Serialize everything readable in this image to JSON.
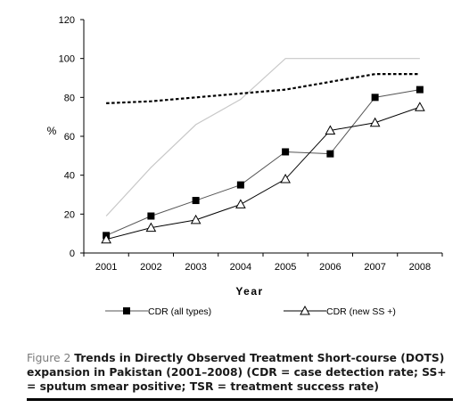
{
  "chart_data": {
    "type": "line",
    "categories": [
      "2001",
      "2002",
      "2003",
      "2004",
      "2005",
      "2006",
      "2007",
      "2008"
    ],
    "xlabel": "Year",
    "ylabel": "%",
    "ylim": [
      0,
      120
    ],
    "yticks": [
      0,
      20,
      40,
      60,
      80,
      100,
      120
    ],
    "grid": false,
    "legend_position": "bottom",
    "series": [
      {
        "name": "CDR (all types)",
        "marker": "filled-square",
        "style": "solid",
        "color": "#555555",
        "values": [
          9,
          19,
          27,
          35,
          52,
          51,
          80,
          84
        ]
      },
      {
        "name": "CDR (new SS +)",
        "marker": "open-triangle",
        "style": "solid",
        "color": "#000000",
        "values": [
          7,
          13,
          17,
          25,
          38,
          63,
          67,
          75
        ]
      },
      {
        "name": "",
        "marker": "none",
        "style": "light-solid",
        "color": "#c8c8c8",
        "values": [
          19,
          44,
          66,
          79,
          100,
          100,
          100,
          100
        ]
      },
      {
        "name": "",
        "marker": "none",
        "style": "dotted",
        "color": "#000000",
        "values": [
          77,
          78,
          80,
          82,
          84,
          88,
          92,
          92
        ]
      }
    ]
  },
  "caption": {
    "label": "Figure 2",
    "text": "Trends in Directly Observed Treatment Short-course (DOTS) expansion in Pakistan (2001–2008) (CDR = case detection rate; SS+ = sputum smear positive; TSR = treatment success rate)"
  }
}
